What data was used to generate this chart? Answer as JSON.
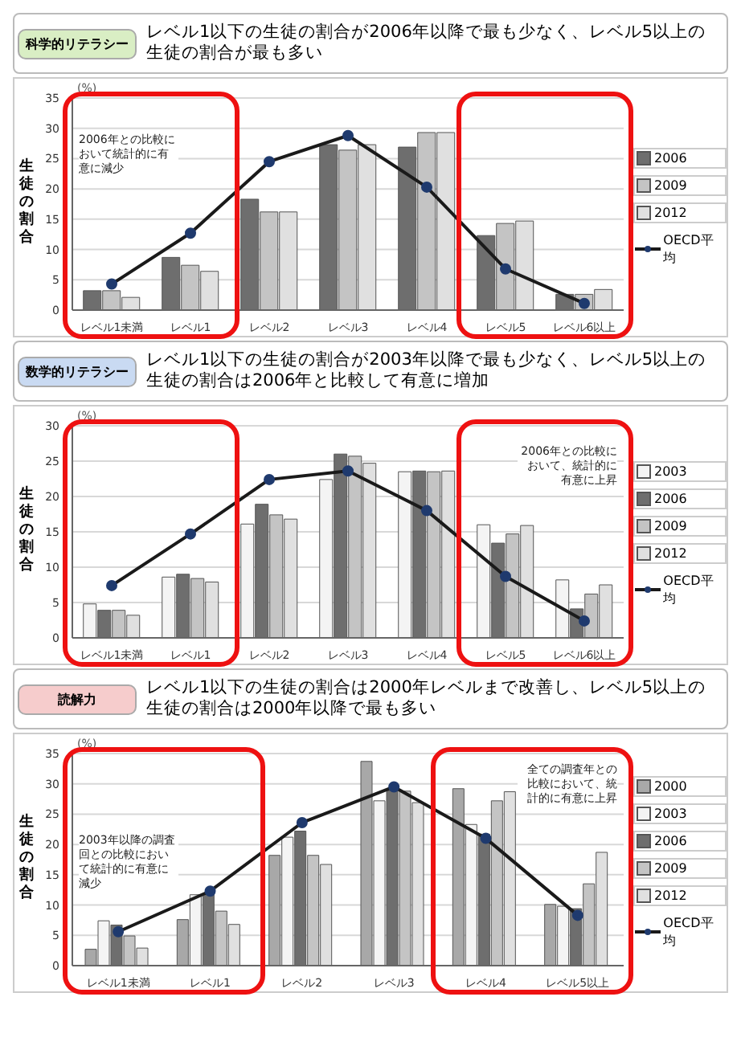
{
  "chart_data": [
    {
      "type": "bar",
      "title": "科学的リテラシー",
      "subtitle": "レベル1以下の生徒の割合が2006年以降で最も少なく、レベル5以上の生徒の割合が最も多い",
      "ylabel": "生徒の割合",
      "categories": [
        "レベル1未満",
        "レベル1",
        "レベル2",
        "レベル3",
        "レベル4",
        "レベル5",
        "レベル6以上"
      ],
      "series": [
        {
          "name": "2006",
          "color": "#6e6e6e",
          "values": [
            3.2,
            8.7,
            18.3,
            27.3,
            26.9,
            12.3,
            2.6
          ]
        },
        {
          "name": "2009",
          "color": "#c4c4c4",
          "values": [
            3.2,
            7.4,
            16.2,
            26.4,
            29.3,
            14.3,
            2.6
          ]
        },
        {
          "name": "2012",
          "color": "#e0e0e0",
          "values": [
            2.1,
            6.4,
            16.2,
            27.3,
            29.3,
            14.7,
            3.4
          ]
        },
        {
          "name": "OECD平均",
          "type": "line",
          "color": "#1a1a1a",
          "values": [
            4.3,
            12.7,
            24.5,
            28.8,
            20.3,
            6.8,
            1.1
          ]
        }
      ],
      "ylim": [
        0,
        35
      ],
      "yticks": [
        0,
        5,
        10,
        15,
        20,
        25,
        30,
        35
      ],
      "grid": "y",
      "legend": "right",
      "marker": "circle",
      "annotations": [
        "(%)",
        "2006年との比較において統計的に有意に減少"
      ]
    },
    {
      "type": "bar",
      "title": "数学的リテラシー",
      "subtitle": "レベル1以下の生徒の割合が2003年以降で最も少なく、レベル5以上の生徒の割合は2006年と比較して有意に増加",
      "ylabel": "生徒の割合",
      "categories": [
        "レベル1未満",
        "レベル1",
        "レベル2",
        "レベル3",
        "レベル4",
        "レベル5",
        "レベル6以上"
      ],
      "series": [
        {
          "name": "2003",
          "color": "#f4f4f4",
          "values": [
            4.8,
            8.6,
            16.1,
            22.4,
            23.5,
            16.0,
            8.2
          ]
        },
        {
          "name": "2006",
          "color": "#6e6e6e",
          "values": [
            3.9,
            9.0,
            18.9,
            26.0,
            23.6,
            13.4,
            4.1
          ]
        },
        {
          "name": "2009",
          "color": "#c4c4c4",
          "values": [
            3.9,
            8.4,
            17.4,
            25.7,
            23.5,
            14.7,
            6.2
          ]
        },
        {
          "name": "2012",
          "color": "#e0e0e0",
          "values": [
            3.2,
            7.9,
            16.8,
            24.7,
            23.6,
            15.9,
            7.5
          ]
        },
        {
          "name": "OECD平均",
          "type": "line",
          "color": "#1a1a1a",
          "values": [
            7.4,
            14.7,
            22.4,
            23.6,
            18.0,
            8.7,
            2.4
          ]
        }
      ],
      "ylim": [
        0,
        30
      ],
      "yticks": [
        0,
        5,
        10,
        15,
        20,
        25,
        30
      ],
      "grid": "y",
      "legend": "right",
      "marker": "circle",
      "annotations": [
        "(%)",
        "2006年との比較において、統計的に有意に上昇"
      ]
    },
    {
      "type": "bar",
      "title": "読解力",
      "subtitle": "レベル1以下の生徒の割合は2000年レベルまで改善し、レベル5以上の生徒の割合は2000年以降で最も多い",
      "ylabel": "生徒の割合",
      "categories": [
        "レベル1未満",
        "レベル1",
        "レベル2",
        "レベル3",
        "レベル4",
        "レベル5以上"
      ],
      "series": [
        {
          "name": "2000",
          "color": "#a8a8a8",
          "values": [
            2.7,
            7.6,
            18.2,
            33.7,
            29.2,
            10.1
          ]
        },
        {
          "name": "2003",
          "color": "#f4f4f4",
          "values": [
            7.4,
            11.7,
            21.2,
            27.2,
            23.3,
            9.8
          ]
        },
        {
          "name": "2006",
          "color": "#6e6e6e",
          "values": [
            6.7,
            11.8,
            22.2,
            28.9,
            21.7,
            9.4
          ]
        },
        {
          "name": "2009",
          "color": "#c4c4c4",
          "values": [
            4.9,
            9.0,
            18.2,
            28.8,
            27.2,
            13.5
          ]
        },
        {
          "name": "2012",
          "color": "#e0e0e0",
          "values": [
            2.9,
            6.8,
            16.7,
            26.9,
            28.7,
            18.7
          ]
        },
        {
          "name": "OECD平均",
          "type": "line",
          "color": "#1a1a1a",
          "values": [
            5.6,
            12.3,
            23.6,
            29.5,
            21.0,
            8.3
          ]
        }
      ],
      "ylim": [
        0,
        35
      ],
      "yticks": [
        0,
        5,
        10,
        15,
        20,
        25,
        30,
        35
      ],
      "grid": "y",
      "legend": "right",
      "marker": "circle",
      "annotations": [
        "(%)",
        "2003年以降の調査回との比較において統計的に有意に減少",
        "全ての調査年との比較において、統計的に有意に上昇"
      ]
    }
  ]
}
